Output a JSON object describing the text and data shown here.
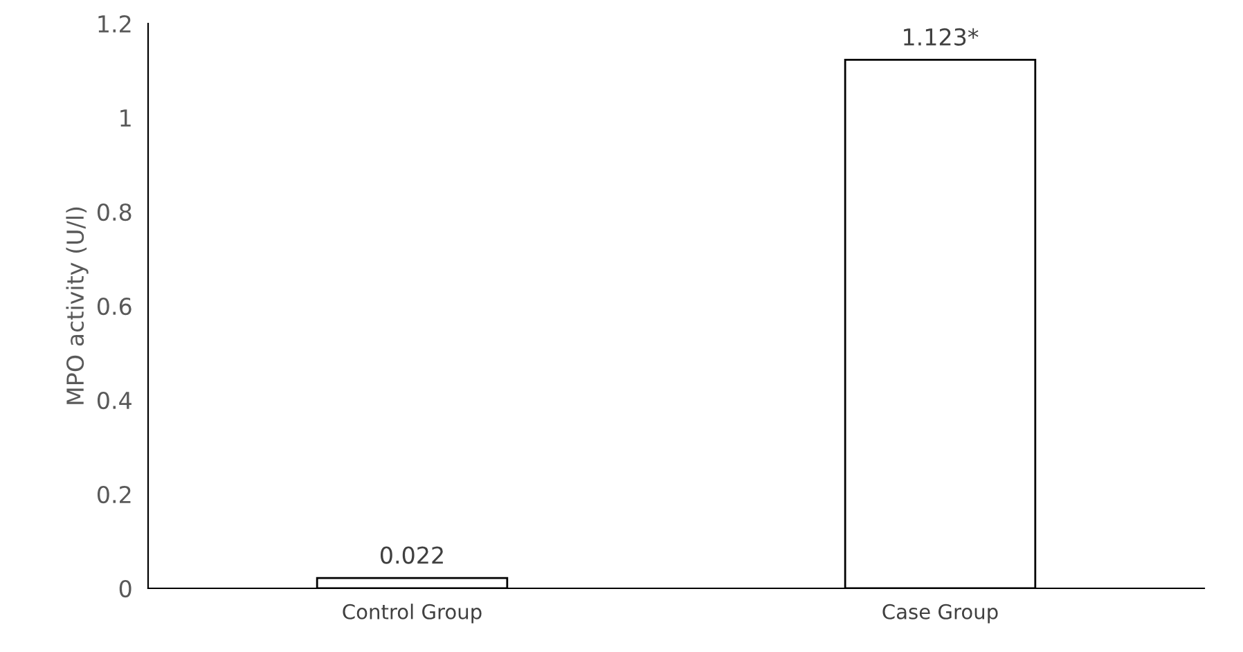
{
  "chart_data": {
    "type": "bar",
    "ylabel": "MPO activity (U/l)",
    "categories": [
      "Control Group",
      "Case Group"
    ],
    "values": [
      0.022,
      1.123
    ],
    "value_labels": [
      "0.022",
      "1.123*"
    ],
    "color": "#ffffff",
    "ylim": [
      0,
      1.2
    ],
    "yticks": [
      0,
      0.2,
      0.4,
      0.6,
      0.8,
      1,
      1.2
    ],
    "grid": false,
    "legend": false
  }
}
